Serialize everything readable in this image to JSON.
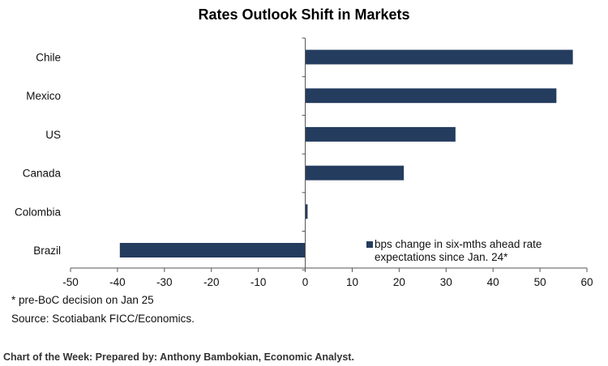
{
  "chart_data": {
    "type": "bar",
    "orientation": "horizontal",
    "title": "Rates Outlook Shift in Markets",
    "categories": [
      "Chile",
      "Mexico",
      "US",
      "Canada",
      "Colombia",
      "Brazil"
    ],
    "series": [
      {
        "name": "bps change in six-mths ahead rate expectations since Jan. 24*",
        "values": [
          57,
          53.5,
          32,
          21,
          0.5,
          -39.5
        ]
      }
    ],
    "xlim": [
      -50,
      60
    ],
    "xticks": [
      -50,
      -40,
      -30,
      -20,
      -10,
      0,
      10,
      20,
      30,
      40,
      50,
      60
    ],
    "grid": false,
    "legend_position": "bottom-right",
    "bar_color": "#243c5e"
  },
  "notes": {
    "footnote": "* pre-BoC decision on Jan 25",
    "source": "Source:  Scotiabank FICC/Economics."
  },
  "footer": {
    "credit": "Chart of the Week:  Prepared by: Anthony Bambokian, Economic Analyst."
  }
}
